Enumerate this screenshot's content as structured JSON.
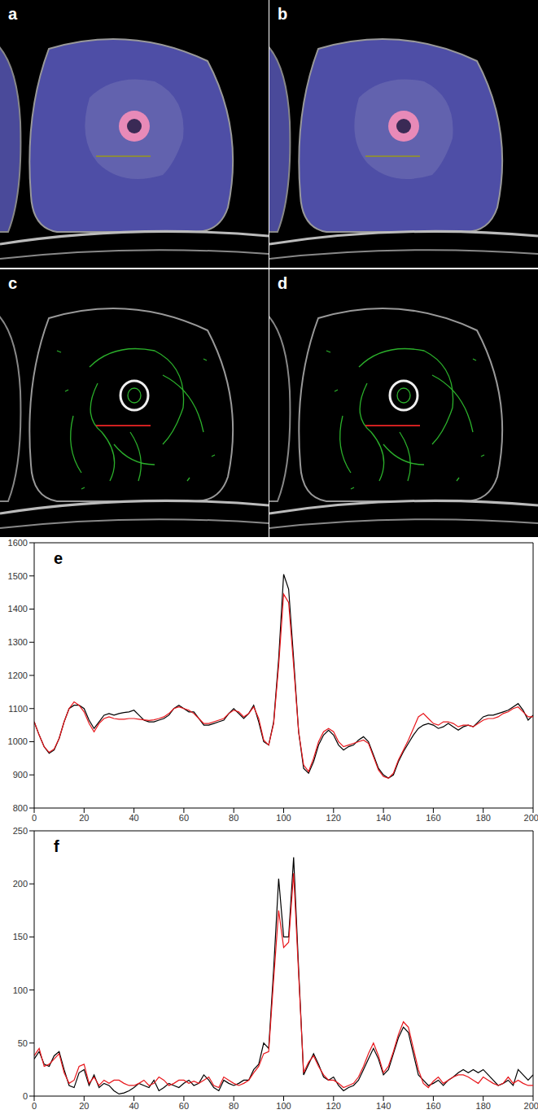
{
  "panels": [
    {
      "label": "a"
    },
    {
      "label": "b"
    },
    {
      "label": "c"
    },
    {
      "label": "d"
    }
  ],
  "chart_data": [
    {
      "type": "line",
      "title": "e",
      "x": [
        0,
        2,
        4,
        6,
        8,
        10,
        12,
        14,
        16,
        18,
        20,
        22,
        24,
        26,
        28,
        30,
        32,
        34,
        36,
        38,
        40,
        42,
        44,
        46,
        48,
        50,
        52,
        54,
        56,
        58,
        60,
        62,
        64,
        66,
        68,
        70,
        72,
        74,
        76,
        78,
        80,
        82,
        84,
        86,
        88,
        90,
        92,
        94,
        96,
        98,
        100,
        102,
        104,
        106,
        108,
        110,
        112,
        114,
        116,
        118,
        120,
        122,
        124,
        126,
        128,
        130,
        132,
        134,
        136,
        138,
        140,
        142,
        144,
        146,
        148,
        150,
        152,
        154,
        156,
        158,
        160,
        162,
        164,
        166,
        168,
        170,
        172,
        174,
        176,
        178,
        180,
        182,
        184,
        186,
        188,
        190,
        192,
        194,
        196,
        198,
        200
      ],
      "xlim": [
        0,
        200
      ],
      "xticks": [
        0,
        20,
        40,
        60,
        80,
        100,
        120,
        140,
        160,
        180,
        200
      ],
      "ylim": [
        800,
        1600
      ],
      "yticks": [
        800,
        900,
        1000,
        1100,
        1200,
        1300,
        1400,
        1500,
        1600
      ],
      "series": [
        {
          "color": "#000000",
          "values": [
            1060,
            1020,
            985,
            965,
            975,
            1010,
            1060,
            1100,
            1110,
            1110,
            1100,
            1065,
            1040,
            1060,
            1080,
            1085,
            1080,
            1085,
            1088,
            1090,
            1095,
            1080,
            1065,
            1060,
            1060,
            1065,
            1070,
            1080,
            1100,
            1110,
            1100,
            1090,
            1090,
            1070,
            1050,
            1050,
            1055,
            1060,
            1065,
            1085,
            1100,
            1085,
            1070,
            1085,
            1110,
            1060,
            1000,
            990,
            1060,
            1250,
            1505,
            1460,
            1250,
            1030,
            920,
            905,
            940,
            990,
            1020,
            1035,
            1020,
            990,
            975,
            985,
            990,
            1005,
            1015,
            1000,
            960,
            920,
            900,
            890,
            900,
            940,
            970,
            995,
            1020,
            1040,
            1050,
            1055,
            1050,
            1040,
            1045,
            1055,
            1045,
            1035,
            1045,
            1050,
            1045,
            1060,
            1075,
            1080,
            1080,
            1085,
            1090,
            1095,
            1105,
            1115,
            1095,
            1065,
            1080
          ]
        },
        {
          "color": "#e8161b",
          "values": [
            1060,
            1020,
            985,
            968,
            978,
            1010,
            1060,
            1100,
            1120,
            1110,
            1090,
            1055,
            1030,
            1055,
            1070,
            1075,
            1070,
            1068,
            1068,
            1070,
            1070,
            1068,
            1066,
            1064,
            1066,
            1070,
            1075,
            1085,
            1100,
            1105,
            1100,
            1095,
            1085,
            1070,
            1055,
            1055,
            1060,
            1065,
            1070,
            1085,
            1095,
            1090,
            1075,
            1085,
            1105,
            1070,
            1005,
            990,
            1055,
            1230,
            1445,
            1420,
            1230,
            1030,
            930,
            910,
            950,
            1000,
            1030,
            1040,
            1030,
            1000,
            985,
            990,
            995,
            1000,
            1005,
            995,
            955,
            915,
            895,
            890,
            905,
            945,
            975,
            1005,
            1040,
            1075,
            1085,
            1070,
            1055,
            1050,
            1060,
            1060,
            1055,
            1045,
            1050,
            1050,
            1045,
            1055,
            1065,
            1070,
            1070,
            1075,
            1085,
            1090,
            1100,
            1105,
            1090,
            1075,
            1075
          ]
        }
      ]
    },
    {
      "type": "line",
      "title": "f",
      "x": [
        0,
        2,
        4,
        6,
        8,
        10,
        12,
        14,
        16,
        18,
        20,
        22,
        24,
        26,
        28,
        30,
        32,
        34,
        36,
        38,
        40,
        42,
        44,
        46,
        48,
        50,
        52,
        54,
        56,
        58,
        60,
        62,
        64,
        66,
        68,
        70,
        72,
        74,
        76,
        78,
        80,
        82,
        84,
        86,
        88,
        90,
        92,
        94,
        96,
        98,
        100,
        102,
        104,
        106,
        108,
        110,
        112,
        114,
        116,
        118,
        120,
        122,
        124,
        126,
        128,
        130,
        132,
        134,
        136,
        138,
        140,
        142,
        144,
        146,
        148,
        150,
        152,
        154,
        156,
        158,
        160,
        162,
        164,
        166,
        168,
        170,
        172,
        174,
        176,
        178,
        180,
        182,
        184,
        186,
        188,
        190,
        192,
        194,
        196,
        198,
        200
      ],
      "xlim": [
        0,
        200
      ],
      "xticks": [
        0,
        20,
        40,
        60,
        80,
        100,
        120,
        140,
        160,
        180,
        200
      ],
      "ylim": [
        0,
        250
      ],
      "yticks": [
        0,
        50,
        100,
        150,
        200,
        250
      ],
      "series": [
        {
          "color": "#000000",
          "values": [
            35,
            42,
            30,
            28,
            38,
            42,
            25,
            10,
            8,
            22,
            25,
            10,
            20,
            8,
            12,
            10,
            5,
            2,
            3,
            5,
            8,
            12,
            10,
            8,
            15,
            5,
            8,
            12,
            10,
            8,
            12,
            15,
            10,
            12,
            20,
            15,
            8,
            5,
            15,
            12,
            10,
            12,
            15,
            15,
            25,
            30,
            50,
            45,
            120,
            205,
            150,
            150,
            225,
            120,
            20,
            30,
            40,
            30,
            18,
            15,
            18,
            10,
            5,
            8,
            10,
            15,
            25,
            35,
            45,
            35,
            20,
            25,
            40,
            55,
            65,
            60,
            40,
            20,
            15,
            10,
            12,
            15,
            10,
            15,
            18,
            22,
            25,
            22,
            25,
            22,
            25,
            20,
            15,
            10,
            12,
            15,
            10,
            25,
            20,
            15,
            20
          ]
        },
        {
          "color": "#e8161b",
          "values": [
            38,
            45,
            28,
            30,
            35,
            40,
            22,
            12,
            15,
            28,
            30,
            12,
            18,
            10,
            15,
            12,
            15,
            15,
            12,
            10,
            10,
            12,
            15,
            10,
            12,
            18,
            15,
            10,
            12,
            15,
            15,
            12,
            14,
            12,
            15,
            18,
            10,
            8,
            18,
            15,
            12,
            10,
            12,
            15,
            22,
            28,
            40,
            42,
            110,
            175,
            140,
            145,
            210,
            115,
            22,
            32,
            38,
            28,
            20,
            15,
            15,
            12,
            8,
            10,
            12,
            18,
            28,
            40,
            50,
            38,
            22,
            28,
            42,
            58,
            70,
            65,
            45,
            25,
            12,
            8,
            14,
            18,
            12,
            15,
            18,
            20,
            20,
            18,
            15,
            12,
            18,
            15,
            12,
            10,
            12,
            18,
            12,
            15,
            12,
            10,
            10
          ]
        }
      ]
    }
  ]
}
